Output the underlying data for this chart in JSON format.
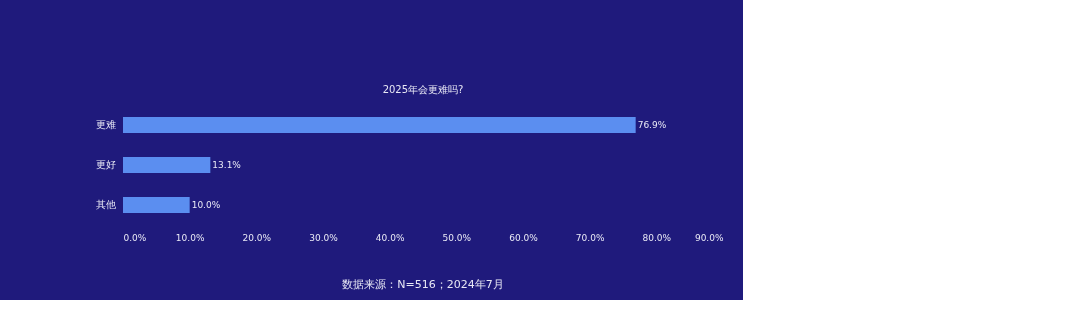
{
  "chart_data": {
    "type": "bar",
    "orientation": "horizontal",
    "title": "2025年会更难吗?",
    "categories": [
      "更难",
      "更好",
      "其他"
    ],
    "values": [
      76.9,
      13.1,
      10.0
    ],
    "value_labels": [
      "76.9%",
      "13.1%",
      "10.0%"
    ],
    "color": "#5b8ef0",
    "xlim": [
      0,
      90
    ],
    "xticks": [
      {
        "value": 0,
        "label": "0.0%"
      },
      {
        "value": 10,
        "label": "10.0%"
      },
      {
        "value": 20,
        "label": "20.0%"
      },
      {
        "value": 30,
        "label": "30.0%"
      },
      {
        "value": 40,
        "label": "40.0%"
      },
      {
        "value": 50,
        "label": "50.0%"
      },
      {
        "value": 60,
        "label": "60.0%"
      },
      {
        "value": 70,
        "label": "70.0%"
      },
      {
        "value": 80,
        "label": "80.0%"
      },
      {
        "value": 90,
        "label": "90.0%"
      }
    ],
    "grid": false,
    "annotations": [
      "数据来源：N=516；2024年7月"
    ]
  }
}
